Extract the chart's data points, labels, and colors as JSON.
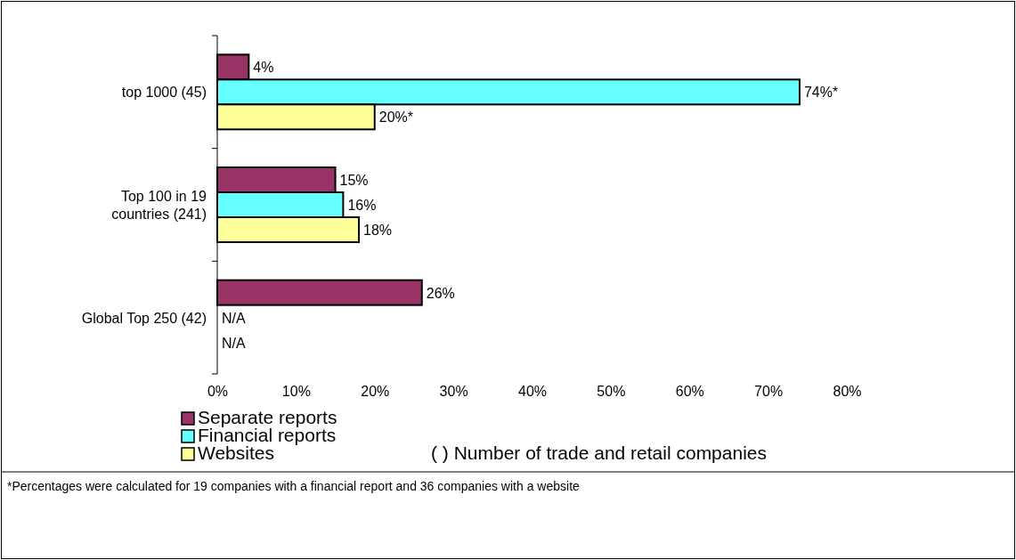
{
  "chart_data": {
    "type": "bar",
    "orientation": "horizontal",
    "categories": [
      "top 1000 (45)",
      "Top 100 in 19 countries (241)",
      "Global Top 250 (42)"
    ],
    "series": [
      {
        "name": "Separate reports",
        "color": "#993366",
        "values": [
          4,
          15,
          26
        ],
        "value_labels": [
          "4%",
          "15%",
          "26%"
        ]
      },
      {
        "name": "Financial reports",
        "color": "#66ffff",
        "values": [
          74,
          16,
          null
        ],
        "value_labels": [
          "74%*",
          "16%",
          "N/A"
        ]
      },
      {
        "name": "Websites",
        "color": "#ffff99",
        "values": [
          20,
          18,
          null
        ],
        "value_labels": [
          "20%*",
          "18%",
          "N/A"
        ]
      }
    ],
    "xlim": [
      0,
      80
    ],
    "xticks": [
      {
        "value": 0,
        "label": "0%"
      },
      {
        "value": 10,
        "label": "10%"
      },
      {
        "value": 20,
        "label": "20%"
      },
      {
        "value": 30,
        "label": "30%"
      },
      {
        "value": 40,
        "label": "40%"
      },
      {
        "value": 50,
        "label": "50%"
      },
      {
        "value": 60,
        "label": "60%"
      },
      {
        "value": 70,
        "label": "70%"
      },
      {
        "value": 80,
        "label": "80%"
      }
    ],
    "grid": false,
    "legend": "bottom",
    "annotations": [
      "( ) Number of trade and retail companies",
      "*Percentages were calculated for 19 companies with a financial report and 36 companies with a website"
    ]
  }
}
